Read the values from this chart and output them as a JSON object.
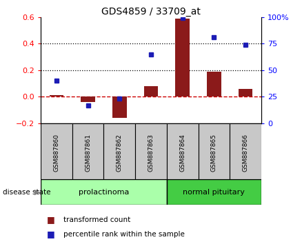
{
  "title": "GDS4859 / 33709_at",
  "samples": [
    "GSM887860",
    "GSM887861",
    "GSM887862",
    "GSM887863",
    "GSM887864",
    "GSM887865",
    "GSM887866"
  ],
  "transformed_count": [
    0.01,
    -0.04,
    -0.16,
    0.08,
    0.59,
    0.19,
    0.06
  ],
  "percentile_rank": [
    40,
    17,
    23,
    65,
    99,
    81,
    74
  ],
  "bar_color": "#8B1A1A",
  "dot_color": "#1C1CB5",
  "ylim_left": [
    -0.2,
    0.6
  ],
  "ylim_right": [
    0,
    100
  ],
  "yticks_left": [
    -0.2,
    0.0,
    0.2,
    0.4,
    0.6
  ],
  "yticks_right": [
    0,
    25,
    50,
    75,
    100
  ],
  "ytick_labels_right": [
    "0",
    "25",
    "50",
    "75",
    "100%"
  ],
  "groups": [
    {
      "label": "prolactinoma",
      "indices": [
        0,
        1,
        2,
        3
      ],
      "color": "#AAFFAA"
    },
    {
      "label": "normal pituitary",
      "indices": [
        4,
        5,
        6
      ],
      "color": "#44CC44"
    }
  ],
  "disease_state_label": "disease state",
  "legend_entries": [
    {
      "label": "transformed count",
      "color": "#8B1A1A"
    },
    {
      "label": "percentile rank within the sample",
      "color": "#1C1CB5"
    }
  ],
  "hline_color": "#CC0000",
  "dot_gridline_color": "#000000",
  "box_color": "#C8C8C8",
  "bar_width": 0.45
}
